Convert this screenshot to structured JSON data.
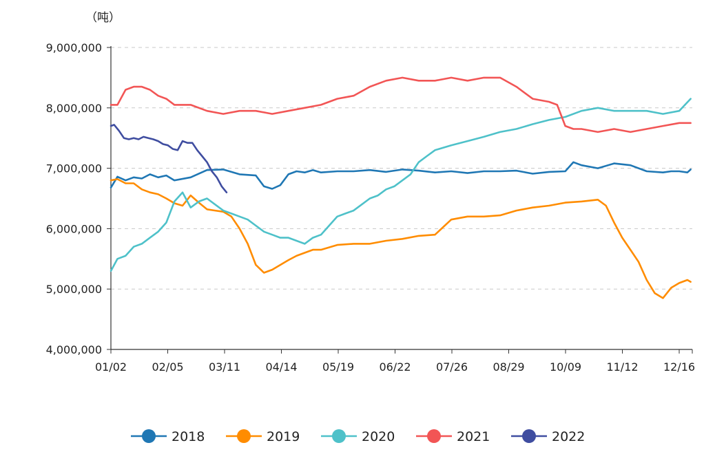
{
  "chart_data": {
    "type": "line",
    "unit": "（吨）",
    "y_ticks": [
      "4,000,000",
      "5,000,000",
      "6,000,000",
      "7,000,000",
      "8,000,000",
      "9,000,000"
    ],
    "ylim": [
      4000000,
      9000000
    ],
    "x_ticks": [
      "01/02",
      "02/05",
      "03/11",
      "04/14",
      "05/19",
      "06/22",
      "07/26",
      "08/29",
      "10/09",
      "11/12",
      "12/16"
    ],
    "xlim": [
      1,
      358
    ],
    "gridlines": "horizontal-dashed",
    "legend_position": "bottom",
    "series": [
      {
        "name": "2018",
        "color": "#1f77b4",
        "x": [
          1,
          5,
          10,
          15,
          20,
          25,
          30,
          35,
          40,
          50,
          60,
          70,
          80,
          90,
          95,
          100,
          105,
          110,
          115,
          120,
          125,
          130,
          140,
          150,
          160,
          170,
          180,
          190,
          200,
          210,
          220,
          230,
          240,
          250,
          260,
          270,
          280,
          285,
          290,
          300,
          310,
          320,
          330,
          340,
          345,
          350,
          355,
          357
        ],
        "y": [
          6680000,
          6860000,
          6800000,
          6850000,
          6830000,
          6900000,
          6850000,
          6880000,
          6800000,
          6850000,
          6970000,
          6980000,
          6900000,
          6880000,
          6700000,
          6660000,
          6720000,
          6900000,
          6950000,
          6930000,
          6970000,
          6930000,
          6950000,
          6950000,
          6970000,
          6940000,
          6980000,
          6960000,
          6930000,
          6950000,
          6920000,
          6950000,
          6950000,
          6960000,
          6910000,
          6940000,
          6950000,
          7100000,
          7050000,
          7000000,
          7080000,
          7050000,
          6950000,
          6930000,
          6950000,
          6950000,
          6930000,
          6980000
        ]
      },
      {
        "name": "2019",
        "color": "#ff8c00",
        "x": [
          1,
          5,
          10,
          15,
          20,
          25,
          30,
          35,
          40,
          45,
          50,
          55,
          60,
          65,
          70,
          75,
          80,
          85,
          90,
          95,
          100,
          105,
          110,
          115,
          120,
          125,
          130,
          140,
          150,
          160,
          170,
          180,
          190,
          200,
          210,
          220,
          230,
          240,
          250,
          260,
          270,
          280,
          290,
          300,
          305,
          310,
          315,
          320,
          325,
          330,
          335,
          340,
          345,
          350,
          355,
          357
        ],
        "y": [
          6800000,
          6820000,
          6750000,
          6750000,
          6650000,
          6600000,
          6570000,
          6500000,
          6420000,
          6380000,
          6550000,
          6430000,
          6320000,
          6300000,
          6280000,
          6200000,
          6000000,
          5750000,
          5400000,
          5270000,
          5320000,
          5400000,
          5480000,
          5550000,
          5600000,
          5650000,
          5650000,
          5730000,
          5750000,
          5750000,
          5800000,
          5830000,
          5880000,
          5900000,
          6150000,
          6200000,
          6200000,
          6220000,
          6300000,
          6350000,
          6380000,
          6430000,
          6450000,
          6480000,
          6380000,
          6100000,
          5850000,
          5650000,
          5450000,
          5150000,
          4930000,
          4850000,
          5020000,
          5100000,
          5150000,
          5120000
        ]
      },
      {
        "name": "2020",
        "color": "#4ec1c9",
        "x": [
          1,
          5,
          10,
          15,
          20,
          25,
          30,
          35,
          40,
          45,
          50,
          55,
          60,
          65,
          70,
          75,
          80,
          85,
          90,
          95,
          100,
          105,
          110,
          115,
          120,
          125,
          130,
          135,
          140,
          145,
          150,
          155,
          160,
          165,
          170,
          175,
          180,
          185,
          190,
          195,
          200,
          210,
          220,
          230,
          240,
          250,
          260,
          270,
          280,
          290,
          300,
          310,
          320,
          330,
          340,
          350,
          357
        ],
        "y": [
          5300000,
          5500000,
          5550000,
          5700000,
          5750000,
          5850000,
          5950000,
          6100000,
          6450000,
          6600000,
          6350000,
          6450000,
          6500000,
          6400000,
          6300000,
          6250000,
          6200000,
          6150000,
          6050000,
          5950000,
          5900000,
          5850000,
          5850000,
          5800000,
          5750000,
          5850000,
          5900000,
          6050000,
          6200000,
          6250000,
          6300000,
          6400000,
          6500000,
          6550000,
          6650000,
          6700000,
          6800000,
          6900000,
          7100000,
          7200000,
          7300000,
          7380000,
          7450000,
          7520000,
          7600000,
          7650000,
          7730000,
          7800000,
          7850000,
          7950000,
          8000000,
          7950000,
          7950000,
          7950000,
          7900000,
          7950000,
          8150000
        ]
      },
      {
        "name": "2021",
        "color": "#f25555",
        "x": [
          1,
          5,
          10,
          15,
          20,
          25,
          30,
          35,
          40,
          50,
          60,
          70,
          80,
          90,
          100,
          110,
          120,
          130,
          140,
          150,
          160,
          170,
          180,
          190,
          200,
          210,
          220,
          230,
          240,
          250,
          260,
          270,
          275,
          280,
          285,
          290,
          300,
          310,
          320,
          330,
          340,
          350,
          357
        ],
        "y": [
          8050000,
          8050000,
          8300000,
          8350000,
          8350000,
          8300000,
          8200000,
          8150000,
          8050000,
          8050000,
          7950000,
          7900000,
          7950000,
          7950000,
          7900000,
          7950000,
          8000000,
          8050000,
          8150000,
          8200000,
          8350000,
          8450000,
          8500000,
          8450000,
          8450000,
          8500000,
          8450000,
          8500000,
          8500000,
          8350000,
          8150000,
          8100000,
          8050000,
          7700000,
          7650000,
          7650000,
          7600000,
          7650000,
          7600000,
          7650000,
          7700000,
          7750000,
          7750000
        ]
      },
      {
        "name": "2022",
        "color": "#3f4da0",
        "x": [
          1,
          3,
          6,
          9,
          12,
          15,
          18,
          21,
          24,
          27,
          30,
          33,
          36,
          39,
          42,
          45,
          48,
          51,
          54,
          57,
          60,
          63,
          66,
          69,
          72
        ],
        "y": [
          7700000,
          7720000,
          7620000,
          7500000,
          7480000,
          7500000,
          7480000,
          7520000,
          7500000,
          7480000,
          7450000,
          7400000,
          7380000,
          7320000,
          7300000,
          7450000,
          7420000,
          7420000,
          7300000,
          7200000,
          7100000,
          6950000,
          6850000,
          6700000,
          6600000
        ]
      }
    ]
  }
}
